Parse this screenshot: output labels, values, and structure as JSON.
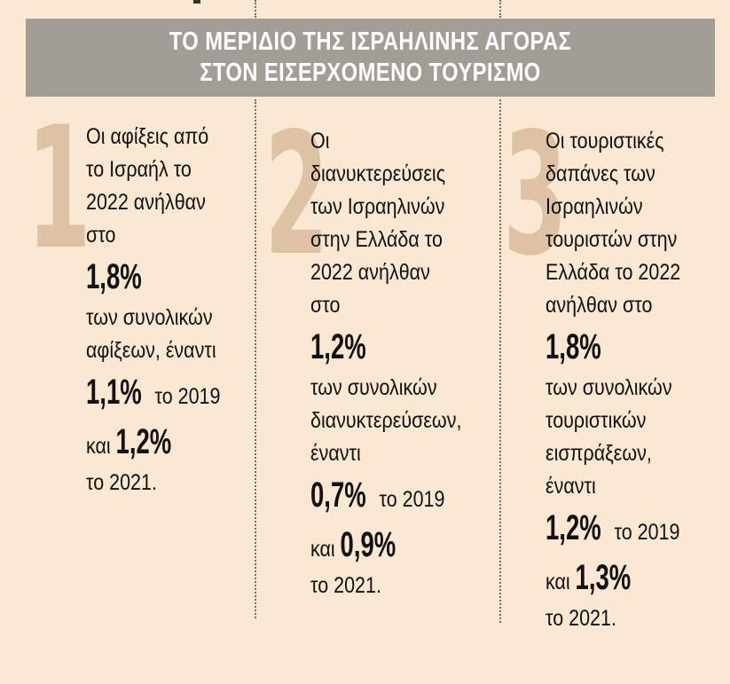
{
  "banner": {
    "line1": "ΤΟ ΜΕΡΙΔΙΟ ΤΗΣ ΙΣΡΑΗΛΙΝΗΣ ΑΓΟΡΑΣ",
    "line2": "ΣΤΟΝ ΕΙΣΕΡΧΟΜΕΝΟ ΤΟΥΡΙΣΜΟ"
  },
  "columns": [
    {
      "number": "1",
      "l1": "Οι αφίξεις από",
      "l2": "το Ισραήλ το",
      "l3": "2022 ανήλθαν",
      "l4": "στο",
      "pct_main": "1,8%",
      "l5": "των συνολικών",
      "l6": "αφίξεων, έναντι",
      "pct_2019": "1,1%",
      "y2019": " το 2019",
      "and": "και ",
      "pct_2021": "1,2%",
      "y2021": "το 2021."
    },
    {
      "number": "2",
      "l1": "Οι",
      "l2": "διανυκτερεύσεις",
      "l3": "των Ισραηλινών",
      "l4": "στην Ελλάδα το",
      "l5": "2022 ανήλθαν",
      "l6": "στο",
      "pct_main": "1,2%",
      "l7": "των συνολικών",
      "l8": "διανυκτερεύσεων,",
      "l9": "έναντι",
      "pct_2019": "0,7%",
      "y2019": " το 2019",
      "and": "και ",
      "pct_2021": "0,9%",
      "y2021": "το 2021."
    },
    {
      "number": "3",
      "l1": "Οι τουριστικές",
      "l2": "δαπάνες των",
      "l3": "Ισραηλινών",
      "l4": "τουριστών στην",
      "l5": "Ελλάδα το 2022",
      "l6": "ανήλθαν στο",
      "pct_main": "1,8%",
      "l7": "των συνολικών",
      "l8": "τουριστικών",
      "l9": "εισπράξεων,",
      "l10": "έναντι",
      "pct_2019": "1,2%",
      "y2019": " το 2019",
      "and": "και ",
      "pct_2021": "1,3%",
      "y2021": "το 2021."
    }
  ]
}
